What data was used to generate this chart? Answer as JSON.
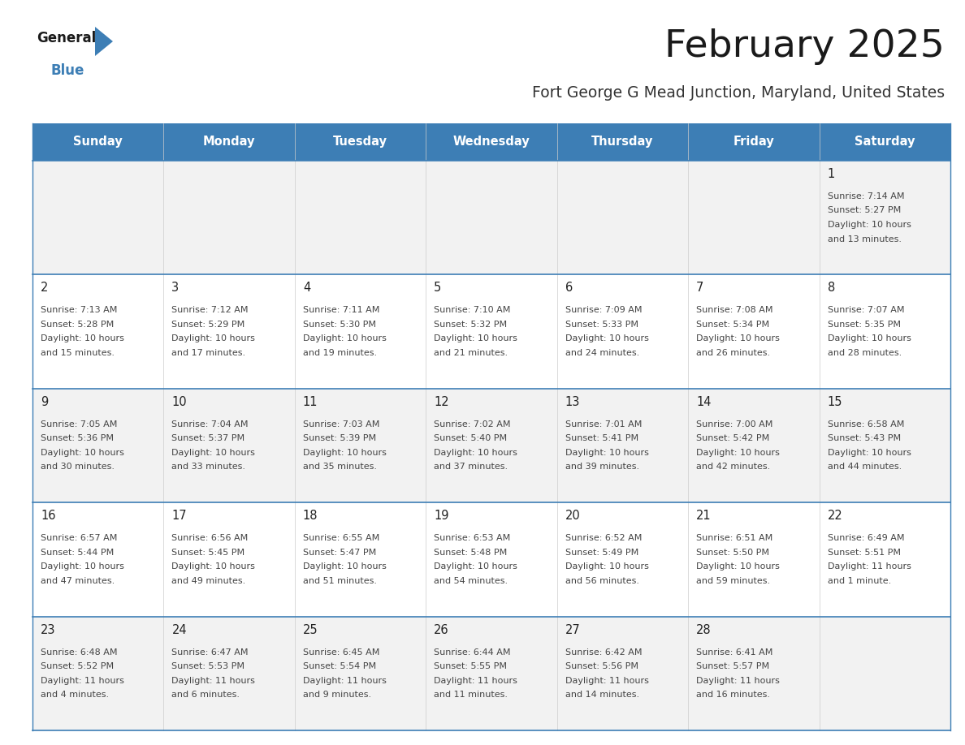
{
  "title": "February 2025",
  "subtitle": "Fort George G Mead Junction, Maryland, United States",
  "days_of_week": [
    "Sunday",
    "Monday",
    "Tuesday",
    "Wednesday",
    "Thursday",
    "Friday",
    "Saturday"
  ],
  "header_bg_color": "#3D7EB5",
  "header_text_color": "#FFFFFF",
  "cell_bg_colors": [
    "#F2F2F2",
    "#FFFFFF",
    "#F2F2F2",
    "#FFFFFF",
    "#F2F2F2"
  ],
  "cell_border_color": "#3D7EB5",
  "title_color": "#1a1a1a",
  "subtitle_color": "#333333",
  "day_number_color": "#222222",
  "cell_text_color": "#444444",
  "logo_general_color": "#1a1a1a",
  "logo_blue_color": "#3D7EB5",
  "logo_triangle_color": "#3D7EB5",
  "calendar": [
    [
      null,
      null,
      null,
      null,
      null,
      null,
      {
        "day": 1,
        "sunrise": "7:14 AM",
        "sunset": "5:27 PM",
        "daylight": "10 hours\nand 13 minutes."
      }
    ],
    [
      {
        "day": 2,
        "sunrise": "7:13 AM",
        "sunset": "5:28 PM",
        "daylight": "10 hours\nand 15 minutes."
      },
      {
        "day": 3,
        "sunrise": "7:12 AM",
        "sunset": "5:29 PM",
        "daylight": "10 hours\nand 17 minutes."
      },
      {
        "day": 4,
        "sunrise": "7:11 AM",
        "sunset": "5:30 PM",
        "daylight": "10 hours\nand 19 minutes."
      },
      {
        "day": 5,
        "sunrise": "7:10 AM",
        "sunset": "5:32 PM",
        "daylight": "10 hours\nand 21 minutes."
      },
      {
        "day": 6,
        "sunrise": "7:09 AM",
        "sunset": "5:33 PM",
        "daylight": "10 hours\nand 24 minutes."
      },
      {
        "day": 7,
        "sunrise": "7:08 AM",
        "sunset": "5:34 PM",
        "daylight": "10 hours\nand 26 minutes."
      },
      {
        "day": 8,
        "sunrise": "7:07 AM",
        "sunset": "5:35 PM",
        "daylight": "10 hours\nand 28 minutes."
      }
    ],
    [
      {
        "day": 9,
        "sunrise": "7:05 AM",
        "sunset": "5:36 PM",
        "daylight": "10 hours\nand 30 minutes."
      },
      {
        "day": 10,
        "sunrise": "7:04 AM",
        "sunset": "5:37 PM",
        "daylight": "10 hours\nand 33 minutes."
      },
      {
        "day": 11,
        "sunrise": "7:03 AM",
        "sunset": "5:39 PM",
        "daylight": "10 hours\nand 35 minutes."
      },
      {
        "day": 12,
        "sunrise": "7:02 AM",
        "sunset": "5:40 PM",
        "daylight": "10 hours\nand 37 minutes."
      },
      {
        "day": 13,
        "sunrise": "7:01 AM",
        "sunset": "5:41 PM",
        "daylight": "10 hours\nand 39 minutes."
      },
      {
        "day": 14,
        "sunrise": "7:00 AM",
        "sunset": "5:42 PM",
        "daylight": "10 hours\nand 42 minutes."
      },
      {
        "day": 15,
        "sunrise": "6:58 AM",
        "sunset": "5:43 PM",
        "daylight": "10 hours\nand 44 minutes."
      }
    ],
    [
      {
        "day": 16,
        "sunrise": "6:57 AM",
        "sunset": "5:44 PM",
        "daylight": "10 hours\nand 47 minutes."
      },
      {
        "day": 17,
        "sunrise": "6:56 AM",
        "sunset": "5:45 PM",
        "daylight": "10 hours\nand 49 minutes."
      },
      {
        "day": 18,
        "sunrise": "6:55 AM",
        "sunset": "5:47 PM",
        "daylight": "10 hours\nand 51 minutes."
      },
      {
        "day": 19,
        "sunrise": "6:53 AM",
        "sunset": "5:48 PM",
        "daylight": "10 hours\nand 54 minutes."
      },
      {
        "day": 20,
        "sunrise": "6:52 AM",
        "sunset": "5:49 PM",
        "daylight": "10 hours\nand 56 minutes."
      },
      {
        "day": 21,
        "sunrise": "6:51 AM",
        "sunset": "5:50 PM",
        "daylight": "10 hours\nand 59 minutes."
      },
      {
        "day": 22,
        "sunrise": "6:49 AM",
        "sunset": "5:51 PM",
        "daylight": "11 hours\nand 1 minute."
      }
    ],
    [
      {
        "day": 23,
        "sunrise": "6:48 AM",
        "sunset": "5:52 PM",
        "daylight": "11 hours\nand 4 minutes."
      },
      {
        "day": 24,
        "sunrise": "6:47 AM",
        "sunset": "5:53 PM",
        "daylight": "11 hours\nand 6 minutes."
      },
      {
        "day": 25,
        "sunrise": "6:45 AM",
        "sunset": "5:54 PM",
        "daylight": "11 hours\nand 9 minutes."
      },
      {
        "day": 26,
        "sunrise": "6:44 AM",
        "sunset": "5:55 PM",
        "daylight": "11 hours\nand 11 minutes."
      },
      {
        "day": 27,
        "sunrise": "6:42 AM",
        "sunset": "5:56 PM",
        "daylight": "11 hours\nand 14 minutes."
      },
      {
        "day": 28,
        "sunrise": "6:41 AM",
        "sunset": "5:57 PM",
        "daylight": "11 hours\nand 16 minutes."
      },
      null
    ]
  ]
}
